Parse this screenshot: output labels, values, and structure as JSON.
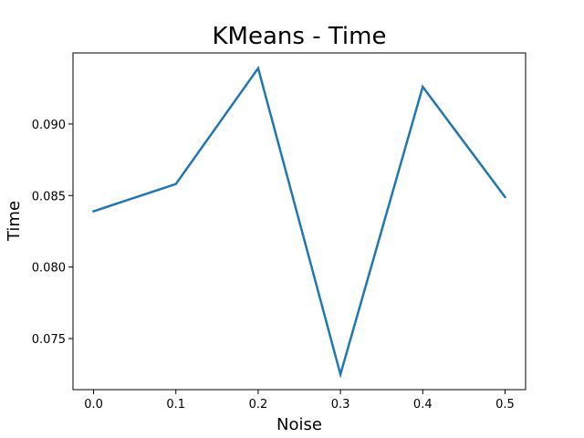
{
  "chart_data": {
    "type": "line",
    "title": "KMeans - Time",
    "xlabel": "Noise",
    "ylabel": "Time",
    "x": [
      0.0,
      0.1,
      0.2,
      0.3,
      0.4,
      0.5
    ],
    "series": [
      {
        "values": [
          0.0839,
          0.0858,
          0.0939,
          0.0725,
          0.0926,
          0.0849
        ],
        "color": "#1f77b4"
      }
    ],
    "x_ticks": [
      "0.0",
      "0.1",
      "0.2",
      "0.3",
      "0.4",
      "0.5"
    ],
    "y_ticks": [
      "0.075",
      "0.080",
      "0.085",
      "0.090"
    ],
    "xlim": [
      -0.025,
      0.525
    ],
    "ylim": [
      0.07143,
      0.09497
    ],
    "grid": false,
    "legend": "none"
  }
}
